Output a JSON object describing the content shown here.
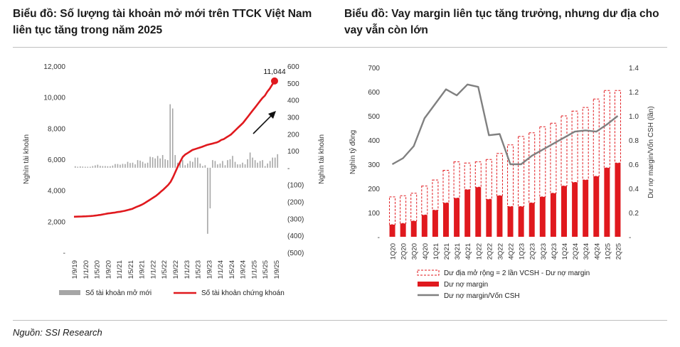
{
  "chart_data": [
    {
      "type": "bar+line",
      "title": "Biểu đồ: Số lượng tài khoản mở mới  trên TTCK Việt Nam liên tục tăng trong năm 2025",
      "ylabel_left": "Nghìn tài khoản",
      "ylabel_right": "Nghìn tài khoản",
      "left_ticks": [
        "12,000",
        "10,000",
        "8,000",
        "6,000",
        "4,000",
        "2,000",
        "-"
      ],
      "left_ylim": [
        0,
        12000
      ],
      "right_ticks": [
        "600",
        "500",
        "400",
        "300",
        "200",
        "100",
        "-",
        "(100)",
        "(200)",
        "(300)",
        "(400)",
        "(500)"
      ],
      "right_ylim": [
        -500,
        600
      ],
      "x_ticks": [
        "1/9/19",
        "1/1/20",
        "1/5/20",
        "1/9/20",
        "1/1/21",
        "1/5/21",
        "1/9/21",
        "1/1/22",
        "1/5/22",
        "1/9/22",
        "1/1/23",
        "1/5/23",
        "1/9/23",
        "1/1/24",
        "1/5/24",
        "1/9/24",
        "1/1/25",
        "1/5/25",
        "1/9/25"
      ],
      "annotation": "11,044",
      "series": [
        {
          "name": "Số tài khoản mở mới",
          "axis": "right",
          "color": "#a6a6a6",
          "values": [
            9,
            6,
            8,
            7,
            6,
            6,
            6,
            10,
            14,
            18,
            11,
            10,
            10,
            9,
            9,
            13,
            22,
            22,
            18,
            23,
            22,
            35,
            28,
            30,
            20,
            45,
            42,
            35,
            25,
            30,
            65,
            62,
            55,
            70,
            55,
            75,
            50,
            45,
            375,
            350,
            75,
            30,
            40,
            45,
            15,
            25,
            40,
            35,
            60,
            60,
            25,
            10,
            15,
            -390,
            -240,
            45,
            40,
            20,
            25,
            40,
            15,
            45,
            50,
            70,
            35,
            20,
            20,
            30,
            20,
            50,
            90,
            60,
            45,
            30,
            40,
            45,
            10,
            25,
            40,
            60,
            60,
            80
          ]
        },
        {
          "name": "Số tài khoản chứng khoán",
          "axis": "left",
          "color": "#e0191e",
          "values": [
            2300,
            2305,
            2310,
            2315,
            2320,
            2325,
            2335,
            2345,
            2360,
            2375,
            2400,
            2420,
            2450,
            2480,
            2510,
            2530,
            2550,
            2570,
            2600,
            2620,
            2650,
            2680,
            2720,
            2760,
            2800,
            2870,
            2940,
            3000,
            3070,
            3150,
            3250,
            3350,
            3450,
            3550,
            3650,
            3780,
            3920,
            4050,
            4200,
            4350,
            4550,
            4850,
            5200,
            5550,
            5850,
            6150,
            6300,
            6400,
            6500,
            6600,
            6650,
            6700,
            6750,
            6800,
            6860,
            6920,
            6960,
            7000,
            7040,
            7080,
            7150,
            7250,
            7300,
            7400,
            7500,
            7600,
            7750,
            7900,
            8050,
            8200,
            8350,
            8550,
            8750,
            8950,
            9150,
            9350,
            9550,
            9750,
            9950,
            10100,
            10350,
            10550,
            10800,
            11044
          ]
        }
      ]
    },
    {
      "type": "bar+line",
      "title": "Biểu đồ: Vay margin liên tục tăng trưởng, nhưng dư địa cho vay vẫn còn lớn",
      "categories": [
        "1Q20",
        "2Q20",
        "3Q20",
        "4Q20",
        "1Q21",
        "2Q21",
        "3Q21",
        "4Q21",
        "1Q22",
        "2Q22",
        "3Q22",
        "4Q22",
        "1Q23",
        "2Q23",
        "3Q23",
        "4Q23",
        "1Q24",
        "2Q24",
        "3Q24",
        "4Q24",
        "1Q25",
        "2Q25"
      ],
      "ylabel_left": "Nghìn tỷ đồng",
      "ylabel_right": "Dư nợ margin/Vốn CSH (lần)",
      "left_ticks": [
        "700",
        "600",
        "500",
        "400",
        "300",
        "200",
        "100",
        "-"
      ],
      "left_ylim": [
        0,
        700
      ],
      "right_ticks": [
        "1.4",
        "1.2",
        "1.0",
        "0.8",
        "0.6",
        "0.4",
        "0.2",
        "-"
      ],
      "right_ylim": [
        0,
        1.4
      ],
      "series": [
        {
          "name": "Dư địa mở rộng = 2 lần VCSH - Dư nợ margin",
          "axis": "left",
          "style": "dashed-stack",
          "color": "#e0191e",
          "values": [
            115,
            115,
            115,
            120,
            125,
            135,
            150,
            110,
            105,
            165,
            175,
            255,
            290,
            290,
            290,
            290,
            290,
            295,
            300,
            320,
            320,
            300
          ]
        },
        {
          "name": "Dư nợ margin",
          "axis": "left",
          "color": "#e0191e",
          "values": [
            50,
            55,
            65,
            90,
            110,
            140,
            160,
            195,
            205,
            155,
            170,
            125,
            125,
            140,
            165,
            180,
            210,
            225,
            235,
            250,
            285,
            305
          ]
        },
        {
          "name": "Dư nợ margin/Vốn CSH",
          "axis": "right",
          "color": "#808080",
          "values": [
            0.6,
            0.65,
            0.75,
            0.98,
            1.1,
            1.22,
            1.17,
            1.26,
            1.24,
            0.84,
            0.85,
            0.6,
            0.6,
            0.67,
            0.72,
            0.77,
            0.82,
            0.87,
            0.88,
            0.87,
            0.93,
            1.0
          ]
        }
      ]
    }
  ],
  "source_label": "Nguồn: SSI Research"
}
